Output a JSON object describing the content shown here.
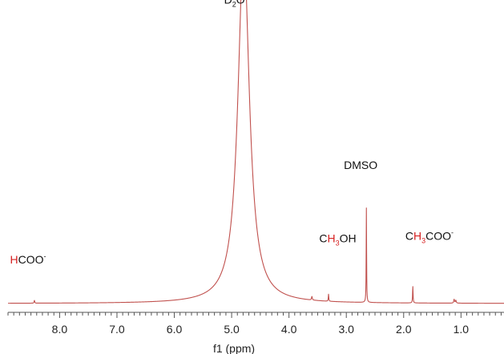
{
  "chart_data": {
    "type": "line",
    "xlabel": "f1 (ppm)",
    "xlim": [
      8.9,
      0.25
    ],
    "x_reversed": true,
    "x_ticks": [
      "8.0",
      "7.0",
      "6.0",
      "5.0",
      "4.0",
      "3.0",
      "2.0",
      "1.0"
    ],
    "x_tick_values": [
      8.0,
      7.0,
      6.0,
      5.0,
      4.0,
      3.0,
      2.0,
      1.0
    ],
    "y_axis_visible": false,
    "grid": false,
    "line_color": "#c0504d",
    "highlight_color": "#d62020",
    "peaks": [
      {
        "ppm": 8.44,
        "height": 0.012,
        "width": 0.006
      },
      {
        "ppm": 4.79,
        "height": 1.5,
        "width": 0.12
      },
      {
        "ppm": 3.6,
        "height": 0.015,
        "width": 0.008
      },
      {
        "ppm": 3.31,
        "height": 0.03,
        "width": 0.005
      },
      {
        "ppm": 2.65,
        "height": 0.4,
        "width": 0.004
      },
      {
        "ppm": 1.84,
        "height": 0.07,
        "width": 0.005
      },
      {
        "ppm": 1.12,
        "height": 0.016,
        "width": 0.008
      },
      {
        "ppm": 1.09,
        "height": 0.012,
        "width": 0.008
      }
    ],
    "annotations": [
      {
        "parts": [
          {
            "t": "H",
            "hl": true
          },
          {
            "t": "COO"
          },
          {
            "t": "-",
            "sup": true
          }
        ],
        "ppm": 8.55,
        "level": 0.17
      },
      {
        "parts": [
          {
            "t": "D"
          },
          {
            "t": "2",
            "sub": true
          },
          {
            "t": "O"
          }
        ],
        "ppm": 4.95,
        "level": 1.27
      },
      {
        "parts": [
          {
            "t": "C"
          },
          {
            "t": "H",
            "hl": true
          },
          {
            "t": "3",
            "sub": true,
            "hl": true
          },
          {
            "t": "OH"
          }
        ],
        "ppm": 3.15,
        "level": 0.26
      },
      {
        "parts": [
          {
            "t": "DMSO"
          }
        ],
        "ppm": 2.75,
        "level": 0.57
      },
      {
        "parts": [
          {
            "t": "C"
          },
          {
            "t": "H",
            "hl": true
          },
          {
            "t": "3",
            "sub": true,
            "hl": true
          },
          {
            "t": "COO"
          },
          {
            "t": "-",
            "sup": true
          }
        ],
        "ppm": 1.55,
        "level": 0.27
      }
    ]
  }
}
